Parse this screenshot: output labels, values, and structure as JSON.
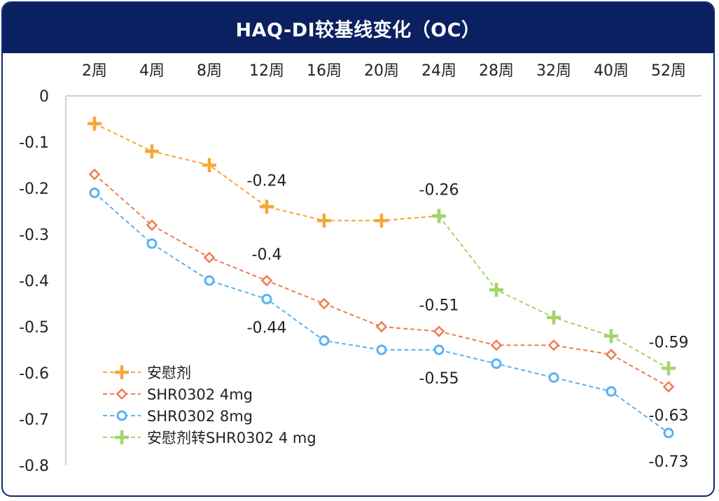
{
  "chart_data": {
    "type": "line",
    "title": "HAQ-DI较基线变化（OC）",
    "categories": [
      "2周",
      "4周",
      "8周",
      "12周",
      "16周",
      "20周",
      "24周",
      "28周",
      "32周",
      "40周",
      "52周"
    ],
    "y_ticks": [
      "0",
      "-0.1",
      "-0.2",
      "-0.3",
      "-0.4",
      "-0.5",
      "-0.6",
      "-0.7",
      "-0.8"
    ],
    "ylim": [
      -0.8,
      0
    ],
    "x_axis_position": "top",
    "grid": false,
    "legend_position": "bottom-left",
    "series": [
      {
        "name": "安慰剂",
        "color": "#f5a836",
        "marker": "plus",
        "values": [
          -0.06,
          -0.12,
          -0.15,
          -0.24,
          -0.27,
          -0.27,
          -0.26,
          null,
          null,
          null,
          null
        ]
      },
      {
        "name": "SHR0302 4mg",
        "color": "#ef7b50",
        "marker": "diamond",
        "values": [
          -0.17,
          -0.28,
          -0.35,
          -0.4,
          -0.45,
          -0.5,
          -0.51,
          -0.54,
          -0.54,
          -0.56,
          -0.63
        ]
      },
      {
        "name": "SHR0302 8mg",
        "color": "#5bb2ef",
        "marker": "circle",
        "values": [
          -0.21,
          -0.32,
          -0.4,
          -0.44,
          -0.53,
          -0.55,
          -0.55,
          -0.58,
          -0.61,
          -0.64,
          -0.73
        ]
      },
      {
        "name": "安慰剂转SHR0302 4 mg",
        "color": "#a5d36c",
        "marker": "plus",
        "values": [
          null,
          null,
          null,
          null,
          null,
          null,
          -0.26,
          -0.42,
          -0.48,
          -0.52,
          -0.59
        ]
      }
    ],
    "annotations": [
      {
        "text": "-0.24",
        "series": 0,
        "index": 3,
        "pos": "above"
      },
      {
        "text": "-0.26",
        "series": 0,
        "index": 6,
        "pos": "above"
      },
      {
        "text": "-0.4",
        "series": 1,
        "index": 3,
        "pos": "above"
      },
      {
        "text": "-0.51",
        "series": 1,
        "index": 6,
        "pos": "above"
      },
      {
        "text": "-0.63",
        "series": 1,
        "index": 10,
        "pos": "below"
      },
      {
        "text": "-0.44",
        "series": 2,
        "index": 3,
        "pos": "below"
      },
      {
        "text": "-0.55",
        "series": 2,
        "index": 6,
        "pos": "below"
      },
      {
        "text": "-0.73",
        "series": 2,
        "index": 10,
        "pos": "below"
      },
      {
        "text": "-0.59",
        "series": 3,
        "index": 10,
        "pos": "above"
      }
    ]
  }
}
